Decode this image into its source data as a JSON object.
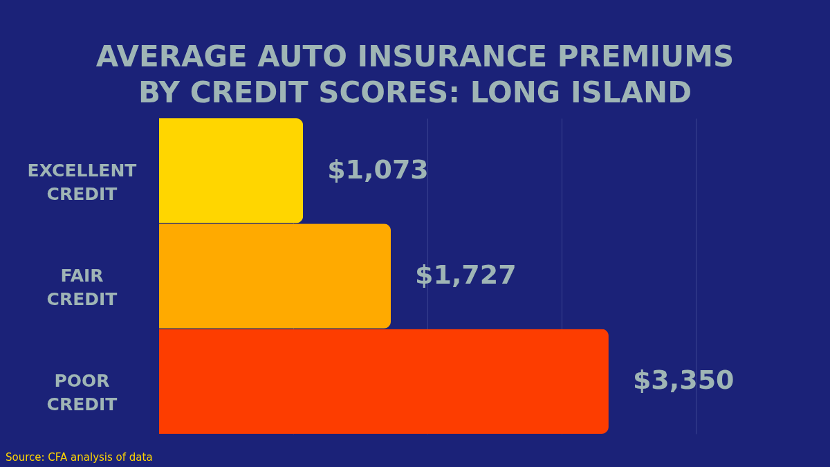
{
  "chart_data": {
    "type": "bar",
    "orientation": "horizontal",
    "title": "AVERAGE AUTO INSURANCE PREMIUMS\nBY CREDIT SCORES: LONG ISLAND",
    "categories": [
      "EXCELLENT CREDIT",
      "FAIR CREDIT",
      "POOR CREDIT"
    ],
    "values": [
      1073,
      1727,
      3350
    ],
    "colors": [
      "#ffd600",
      "#ffaa00",
      "#fd3d00"
    ],
    "value_labels": [
      "$1,073",
      "$1,727",
      "$3,350"
    ],
    "xlim": [
      0,
      5000
    ],
    "xticks": [
      {
        "value": 1000,
        "label": null
      },
      {
        "value": 2000,
        "label": null
      },
      {
        "value": 3000,
        "label": null
      },
      {
        "value": 4000,
        "label": null
      }
    ],
    "grid": "x",
    "tick_labels": "y",
    "annotations": [
      "Source: CFA analysis of data"
    ]
  }
}
